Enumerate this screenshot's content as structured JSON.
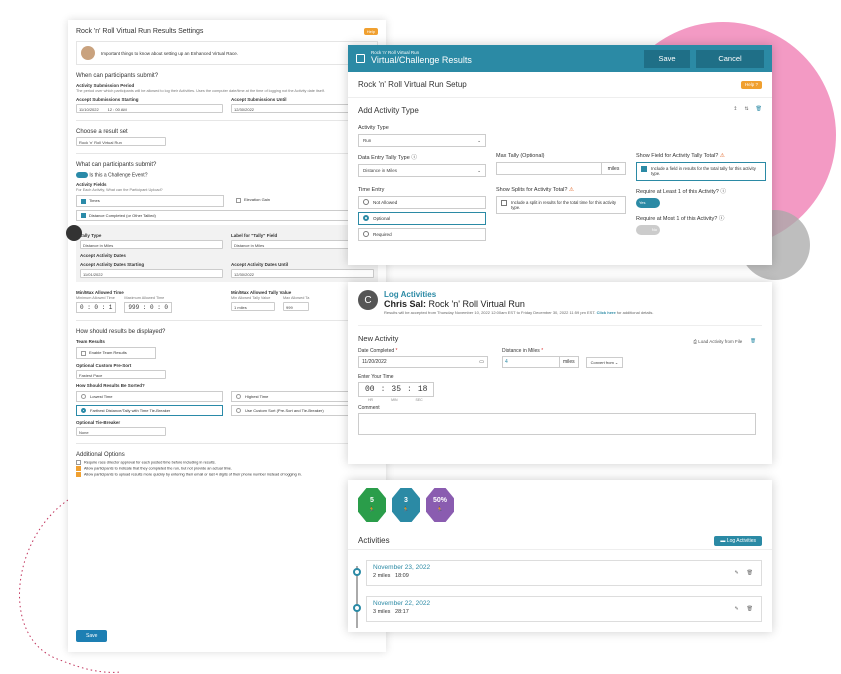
{
  "back_panel": {
    "title": "Rock 'n' Roll Virtual Run Results Settings",
    "help": "Help",
    "banner_text": "Important things to know about setting up an Enhanced Virtual Race.",
    "s1_title": "When can participants submit?",
    "asp_label": "Activity Submission Period",
    "asp_sub": "The period over which participants will be allowed to log their Activities. Uses the computer date/time at the time of logging not the Activity date itself.",
    "start_label": "Accept Submissions Starting",
    "start_value": "11/10/2022",
    "start_time": "12 : 00 AM",
    "until_label": "Accept Submissions Until",
    "until_value": "12/30/2022",
    "s2_label": "Choose a result set",
    "s2_value": "Rock 'n' Roll Virtual Run",
    "s3_title": "What can participants submit?",
    "challenge_label": "Is this a Challenge Event?",
    "activity_fields": "Activity Fields",
    "activity_sub": "For Each Activity, What can the Participant Upload?",
    "times": "Times",
    "elevation": "Elevation Gain",
    "distance_completed": "Distance Completed (or Other Tallied)",
    "tally_type_label": "Tally Type",
    "tally_type_value": "Distance in Miles",
    "label_for_tally": "Label for \"Tally\" Field",
    "label_for_tally_value": "Distance in Miles",
    "accept_activity_dates": "Accept Activity Dates",
    "aad_start_label": "Accept Activity Dates Starting",
    "aad_start_value": "11/01/2022",
    "aad_until_label": "Accept Activity Dates Until",
    "aad_until_value": "12/30/2022",
    "minmax_time": "Min/Max Allowed Time",
    "min_time_label": "Minimum Allowed Time",
    "min_time": "0 : 0 : 1",
    "max_time_label": "Maximum Allowed Time",
    "max_time": "999 : 0 : 0",
    "minmax_tally": "Min/Max Allowed Tally Value",
    "min_tally_label": "Min Allowed Tally Value",
    "min_tally": "1",
    "min_tally_unit": "miles",
    "max_tally_label": "Max Allowed Ta",
    "max_tally": "999",
    "s4_title": "How should results be displayed?",
    "team_results": "Team Results",
    "enable_team": "Enable Team Results",
    "opt_presort": "Optional Custom Pre-Sort",
    "presort_value": "Fastest Pace",
    "sorted_label": "How Should Results Be Sorted?",
    "lowest_time": "Lowest Time",
    "highest_time": "Highest Time",
    "farthest": "Farthest Distance/Tally with Time Tie-Breaker",
    "custom_sort": "Use Custom Sort (Pre-Sort and Tie-Breaker)",
    "tie_breaker": "Optional Tie-Breaker",
    "tie_value": "None",
    "s5_title": "Additional Options",
    "opt1": "Require race director approval for each posted time before including in results.",
    "opt2": "Allow participants to indicate that they completed the run, but not provide an actual time.",
    "opt3": "Allow participants to upload results more quickly by entering their email or last 4 digits of their phone number instead of logging in.",
    "save": "Save"
  },
  "modal": {
    "breadcrumb": "Rock 'n' Roll Virtual Run",
    "title": "Virtual/Challenge Results",
    "save": "Save",
    "cancel": "Cancel",
    "setup_title": "Rock 'n' Roll Virtual Run Setup",
    "help": "Help",
    "card_title": "Add Activity Type",
    "activity_type_label": "Activity Type",
    "activity_type_value": "Run",
    "tally_type_label": "Data Entry Tally Type",
    "tally_type_value": "Distance in Miles",
    "max_tally_label": "Max Tally (Optional)",
    "max_tally_unit": "miles",
    "show_field_label": "Show Field for Activity Tally Total?",
    "show_field_cb": "Include a field in results for the total tally for this activity type.",
    "time_entry_label": "Time Entry",
    "te_not_allowed": "Not Allowed",
    "te_optional": "Optional",
    "te_required": "Required",
    "splits_label": "Show Splits for Activity Total?",
    "splits_cb": "Include a split in results for the total time for this activity type.",
    "req_least_label": "Require at Least 1 of this Activity?",
    "req_least_value": "Yes",
    "req_most_label": "Require at Most 1 of this Activity?",
    "req_most_value": "No"
  },
  "log": {
    "avatar_letter": "C",
    "title": "Log Activities",
    "name": "Chris Sal:",
    "event": "Rock 'n' Roll Virtual Run",
    "info": "Results will be accepted from Thursday November 10, 2022 12:00am EST to Friday December 30, 2022 11:59 pm EST.",
    "click_here": "Click here",
    "info_tail": "for additional details.",
    "new_activity": "New Activity",
    "load_file": "Load Activity from File",
    "date_label": "Date Completed",
    "date_value": "11/20/2022",
    "dist_label": "Distance in Miles",
    "dist_value": "4",
    "dist_unit": "miles",
    "convert": "Convert from",
    "time_label": "Enter Your Time",
    "hh": "00",
    "mm": "35",
    "ss": "18",
    "hr": "HR",
    "min": "MIN",
    "sec": "SEC",
    "comment_label": "Comment"
  },
  "acts": {
    "badges": [
      {
        "value": "5",
        "color": "#2a9d4a"
      },
      {
        "value": "3",
        "color": "#2b8aa5"
      },
      {
        "value": "50%",
        "color": "#8a5cb0"
      }
    ],
    "title": "Activities",
    "log_btn": "Log Activities",
    "items": [
      {
        "date": "November 23, 2022",
        "dist": "2 miles",
        "time": "18:09"
      },
      {
        "date": "November 22, 2022",
        "dist": "3 miles",
        "time": "28:17"
      }
    ]
  }
}
